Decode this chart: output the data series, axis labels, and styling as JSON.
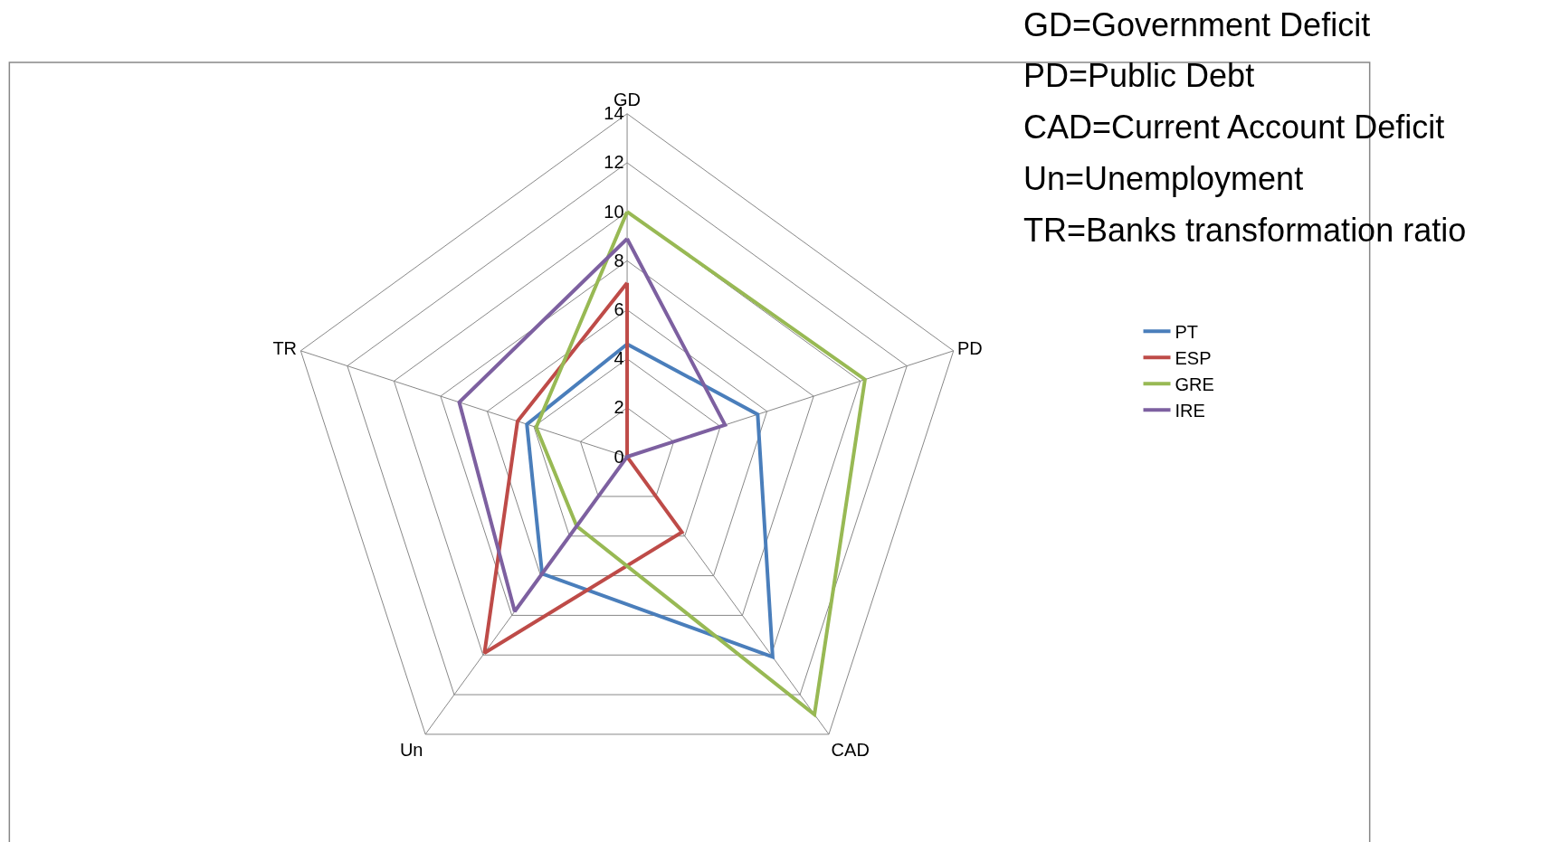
{
  "chart_data": {
    "type": "radar",
    "categories": [
      "GD",
      "PD",
      "CAD",
      "Un",
      "TR"
    ],
    "series": [
      {
        "name": "PT",
        "color": "#4a7ebb",
        "values": [
          4.6,
          5.6,
          10.1,
          5.9,
          4.3
        ]
      },
      {
        "name": "ESP",
        "color": "#be4b48",
        "values": [
          7.1,
          0,
          3.8,
          9.9,
          4.7
        ]
      },
      {
        "name": "GRE",
        "color": "#98b954",
        "values": [
          10,
          10.2,
          13,
          3.5,
          3.9
        ]
      },
      {
        "name": "IRE",
        "color": "#7d60a0",
        "values": [
          8.9,
          4.2,
          0,
          7.8,
          7.2
        ]
      }
    ],
    "ylim": [
      0,
      14
    ],
    "yticks": [
      0,
      2,
      4,
      6,
      8,
      10,
      12,
      14
    ],
    "grid": true,
    "legend": "right",
    "marker": "none",
    "line_style": "solid",
    "annotations": [
      "GD=Government Deficit",
      "PD=Public Debt",
      "CAD=Current Account Deficit",
      "Un=Unemployment",
      "TR=Banks transformation ratio"
    ]
  }
}
